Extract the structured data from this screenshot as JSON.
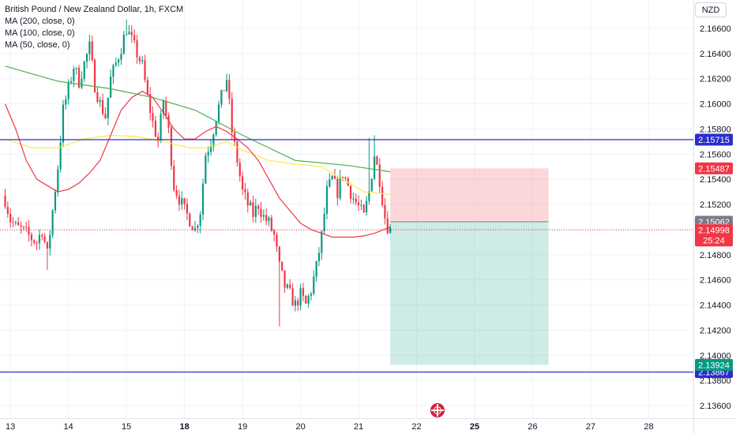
{
  "legend": {
    "title": "British Pound / New Zealand Dollar, 1h, FXCM",
    "ma200": "MA (200, close, 0)",
    "ma100": "MA (100, close, 0)",
    "ma50": "MA (50, close, 0)"
  },
  "currency": "NZD",
  "colors": {
    "up": "#089981",
    "down": "#f23645",
    "ma200": "#4caf50",
    "ma100": "#ffeb3b",
    "ma50": "#f23645",
    "hline": "#2a2ecd",
    "tp_zone": "#089981",
    "sl_zone": "#f23645",
    "grid": "#f0f3fa",
    "text": "#131722"
  },
  "chart_data": {
    "type": "candlestick",
    "symbol": "GBPNZD",
    "timeframe": "1h",
    "ylim": [
      2.135,
      2.1675
    ],
    "y_ticks": [
      "2.16600",
      "2.16400",
      "2.16200",
      "2.16000",
      "2.15800",
      "2.15600",
      "2.15400",
      "2.15200",
      "2.15000",
      "2.14800",
      "2.14600",
      "2.14400",
      "2.14200",
      "2.14000",
      "2.13800",
      "2.13600"
    ],
    "x_ticks": [
      {
        "label": "13",
        "bar": 2,
        "bold": false
      },
      {
        "label": "14",
        "bar": 24,
        "bold": false
      },
      {
        "label": "15",
        "bar": 46,
        "bold": false
      },
      {
        "label": "18",
        "bar": 68,
        "bold": true
      },
      {
        "label": "19",
        "bar": 90,
        "bold": false
      },
      {
        "label": "20",
        "bar": 112,
        "bold": false
      },
      {
        "label": "21",
        "bar": 134,
        "bold": false
      },
      {
        "label": "22",
        "bar": 156,
        "bold": false
      },
      {
        "label": "25",
        "bar": 178,
        "bold": true
      },
      {
        "label": "26",
        "bar": 200,
        "bold": false
      },
      {
        "label": "27",
        "bar": 222,
        "bold": false
      },
      {
        "label": "28",
        "bar": 244,
        "bold": false
      }
    ],
    "price_path": [
      [
        0,
        2.1524
      ],
      [
        2,
        2.1508
      ],
      [
        4,
        2.1502
      ],
      [
        6,
        2.15
      ],
      [
        8,
        2.1497
      ],
      [
        10,
        2.1493
      ],
      [
        12,
        2.149
      ],
      [
        14,
        2.15
      ],
      [
        16,
        2.148
      ],
      [
        18,
        2.1515
      ],
      [
        20,
        2.155
      ],
      [
        22,
        2.1595
      ],
      [
        24,
        2.1612
      ],
      [
        26,
        2.163
      ],
      [
        28,
        2.1618
      ],
      [
        30,
        2.1632
      ],
      [
        32,
        2.1645
      ],
      [
        34,
        2.1615
      ],
      [
        36,
        2.16
      ],
      [
        38,
        2.159
      ],
      [
        40,
        2.162
      ],
      [
        42,
        2.1632
      ],
      [
        44,
        2.1645
      ],
      [
        46,
        2.166
      ],
      [
        48,
        2.165
      ],
      [
        50,
        2.164
      ],
      [
        52,
        2.163
      ],
      [
        54,
        2.1605
      ],
      [
        56,
        2.1585
      ],
      [
        58,
        2.157
      ],
      [
        60,
        2.1603
      ],
      [
        62,
        2.1578
      ],
      [
        64,
        2.1535
      ],
      [
        66,
        2.1525
      ],
      [
        68,
        2.1515
      ],
      [
        70,
        2.1508
      ],
      [
        72,
        2.15
      ],
      [
        74,
        2.1515
      ],
      [
        76,
        2.156
      ],
      [
        78,
        2.157
      ],
      [
        80,
        2.159
      ],
      [
        82,
        2.1605
      ],
      [
        84,
        2.162
      ],
      [
        86,
        2.1578
      ],
      [
        88,
        2.1555
      ],
      [
        90,
        2.153
      ],
      [
        92,
        2.152
      ],
      [
        94,
        2.1512
      ],
      [
        96,
        2.152
      ],
      [
        98,
        2.151
      ],
      [
        100,
        2.1505
      ],
      [
        102,
        2.1495
      ],
      [
        104,
        2.147
      ],
      [
        106,
        2.1455
      ],
      [
        108,
        2.1448
      ],
      [
        110,
        2.144
      ],
      [
        112,
        2.1448
      ],
      [
        114,
        2.144
      ],
      [
        116,
        2.1452
      ],
      [
        118,
        2.147
      ],
      [
        120,
        2.1495
      ],
      [
        122,
        2.153
      ],
      [
        124,
        2.154
      ],
      [
        126,
        2.153
      ],
      [
        128,
        2.1545
      ],
      [
        130,
        2.1535
      ],
      [
        132,
        2.1525
      ],
      [
        134,
        2.1518
      ],
      [
        136,
        2.151
      ],
      [
        138,
        2.153
      ],
      [
        140,
        2.156
      ],
      [
        142,
        2.154
      ],
      [
        144,
        2.151
      ],
      [
        145,
        2.1503
      ],
      [
        146,
        2.15
      ]
    ],
    "ma200_points": [
      [
        0,
        2.163
      ],
      [
        20,
        2.1618
      ],
      [
        40,
        2.1612
      ],
      [
        56,
        2.1605
      ],
      [
        72,
        2.1595
      ],
      [
        90,
        2.1575
      ],
      [
        110,
        2.1555
      ],
      [
        130,
        2.1551
      ],
      [
        146,
        2.1546
      ]
    ],
    "ma100_points": [
      [
        0,
        2.1572
      ],
      [
        10,
        2.1565
      ],
      [
        20,
        2.1565
      ],
      [
        30,
        2.1572
      ],
      [
        40,
        2.1575
      ],
      [
        50,
        2.1574
      ],
      [
        60,
        2.157
      ],
      [
        70,
        2.1565
      ],
      [
        76,
        2.1565
      ],
      [
        84,
        2.157
      ],
      [
        90,
        2.1563
      ],
      [
        100,
        2.1555
      ],
      [
        110,
        2.1552
      ],
      [
        120,
        2.155
      ],
      [
        128,
        2.154
      ],
      [
        136,
        2.153
      ],
      [
        146,
        2.1528
      ]
    ],
    "ma50_points": [
      [
        0,
        2.16
      ],
      [
        4,
        2.158
      ],
      [
        8,
        2.1555
      ],
      [
        12,
        2.154
      ],
      [
        16,
        2.1535
      ],
      [
        20,
        2.153
      ],
      [
        24,
        2.1532
      ],
      [
        28,
        2.1537
      ],
      [
        32,
        2.1545
      ],
      [
        36,
        2.1555
      ],
      [
        40,
        2.1575
      ],
      [
        44,
        2.1595
      ],
      [
        48,
        2.1605
      ],
      [
        52,
        2.161
      ],
      [
        56,
        2.1605
      ],
      [
        60,
        2.1593
      ],
      [
        64,
        2.158
      ],
      [
        68,
        2.1572
      ],
      [
        72,
        2.1572
      ],
      [
        76,
        2.1578
      ],
      [
        80,
        2.1582
      ],
      [
        84,
        2.1578
      ],
      [
        88,
        2.1572
      ],
      [
        92,
        2.1565
      ],
      [
        96,
        2.1555
      ],
      [
        100,
        2.154
      ],
      [
        104,
        2.1525
      ],
      [
        108,
        2.1515
      ],
      [
        112,
        2.1505
      ],
      [
        116,
        2.15
      ],
      [
        120,
        2.1497
      ],
      [
        124,
        2.1494
      ],
      [
        128,
        2.1494
      ],
      [
        132,
        2.1494
      ],
      [
        136,
        2.1495
      ],
      [
        140,
        2.1497
      ],
      [
        146,
        2.1502
      ]
    ],
    "horizontal_lines": [
      {
        "price": 2.15715,
        "label": "2.15715"
      },
      {
        "price": 2.13867,
        "label": "2.13867"
      }
    ],
    "current_price": {
      "price": 2.14998,
      "label": "2.14998",
      "countdown": "25:24"
    },
    "last_close_label": {
      "price": 2.15062,
      "label": "2.15062"
    },
    "position": {
      "entry": 2.15062,
      "stop": 2.15487,
      "target": 2.13924,
      "start_bar": 146,
      "end_bar": 206,
      "stop_label": "2.15487",
      "target_label": "2.13924"
    }
  }
}
